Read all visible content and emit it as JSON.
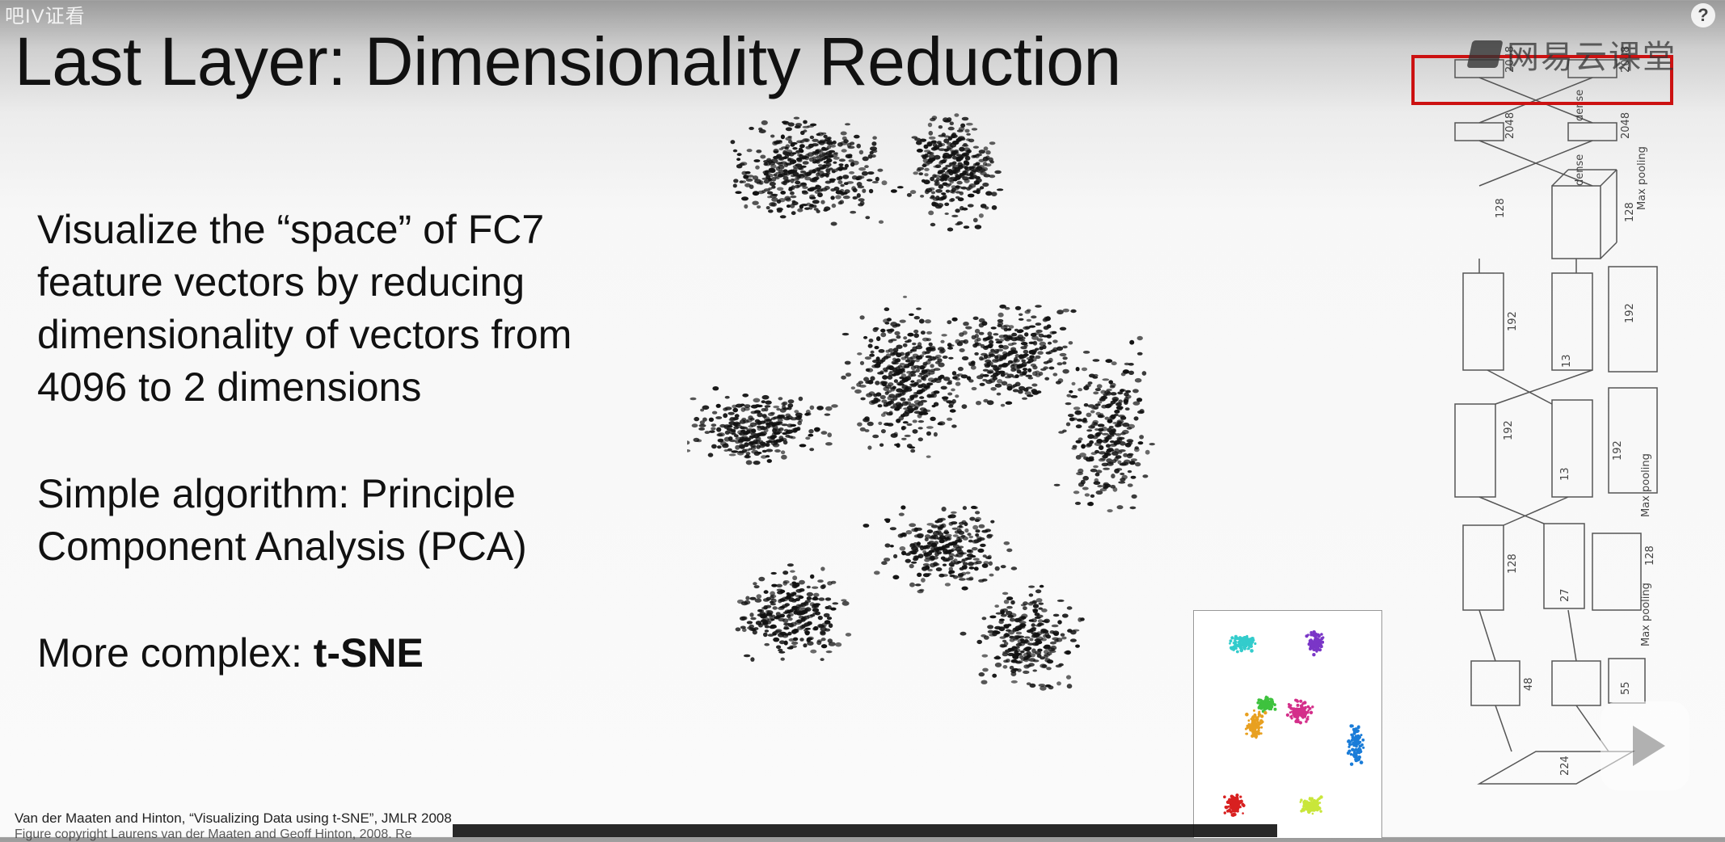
{
  "overlay_tag": "吧IV证看",
  "slide": {
    "title": "Last Layer: Dimensionality Reduction",
    "bullets": [
      {
        "text": "Visualize the “space” of FC7 feature vectors by reducing dimensionality of vectors from 4096 to 2 dimensions"
      },
      {
        "text": "Simple algorithm: Principle Component Analysis (PCA)"
      },
      {
        "prefix": "More complex: ",
        "emphasis": "t-SNE"
      }
    ],
    "footer": "Van der Maaten and Hinton, “Visualizing Data using t-SNE”, JMLR 2008",
    "footer2": "Figure copyright Laurens van der Maaten and Geoff Hinton, 2008. Re"
  },
  "watermark": {
    "logo_text": "网易云课堂",
    "icon": "netease-cloud-classroom-icon"
  },
  "help_icon": "?",
  "player_icon": "play-icon",
  "inset_cluster_colors": [
    "#1a7cd8",
    "#33cccc",
    "#7a36c7",
    "#d42f8a",
    "#3ec23e",
    "#e8a020",
    "#d82020",
    "#c9e63a"
  ],
  "architecture_labels": {
    "dense": "dense",
    "n2048": "2048",
    "n128": "128",
    "n192": "192",
    "n13": "13",
    "n27": "27",
    "n55": "55",
    "n48": "48",
    "n224": "224",
    "max_pooling": "Max pooling"
  },
  "highlight_color": "#cc1111"
}
